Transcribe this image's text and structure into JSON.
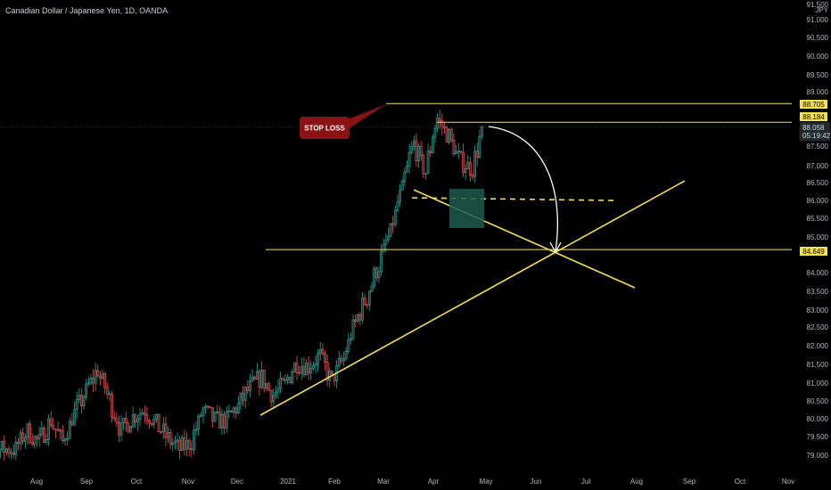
{
  "header": {
    "title": "Canadian Dollar / Japanese Yen, 1D, OANDA"
  },
  "chart_data": {
    "type": "candlestick",
    "currency": "JPY",
    "ylim": [
      78.5,
      91.6
    ],
    "y_ticks": [
      "91.500",
      "91.000",
      "90.500",
      "90.000",
      "89.500",
      "89.000",
      "87.500",
      "87.000",
      "86.500",
      "86.000",
      "85.500",
      "85.000",
      "84.000",
      "83.500",
      "83.000",
      "82.500",
      "82.000",
      "81.500",
      "81.000",
      "80.500",
      "80.000",
      "79.500",
      "79.000"
    ],
    "x_ticks": [
      "Aug",
      "Sep",
      "Oct",
      "Nov",
      "Dec",
      "2021",
      "Feb",
      "Mar",
      "Apr",
      "May",
      "Jun",
      "Jul",
      "Aug",
      "Sep",
      "Oct",
      "Nov"
    ],
    "price_levels": [
      {
        "label": "88.705",
        "value": 88.705
      },
      {
        "label": "88.184",
        "value": 88.184
      },
      {
        "label": "84.649",
        "value": 84.649
      }
    ],
    "current_price": {
      "value": 88.058,
      "label": "88.058",
      "countdown": "05:19:42"
    },
    "annotations": {
      "stop_loss": "STOP LOSS"
    },
    "close_path": [
      [
        "2020-07-20",
        79.1
      ],
      [
        "2020-07-27",
        79.6
      ],
      [
        "2020-08-03",
        79.3
      ],
      [
        "2020-08-10",
        79.9
      ],
      [
        "2020-08-17",
        79.3
      ],
      [
        "2020-08-24",
        80.1
      ],
      [
        "2020-08-31",
        80.7
      ],
      [
        "2020-09-07",
        81.3
      ],
      [
        "2020-09-14",
        80.5
      ],
      [
        "2020-09-21",
        79.6
      ],
      [
        "2020-09-28",
        80.0
      ],
      [
        "2020-10-05",
        80.2
      ],
      [
        "2020-10-12",
        79.8
      ],
      [
        "2020-10-19",
        79.4
      ],
      [
        "2020-10-26",
        79.1
      ],
      [
        "2020-11-02",
        79.3
      ],
      [
        "2020-11-09",
        80.2
      ],
      [
        "2020-11-16",
        79.9
      ],
      [
        "2020-11-23",
        79.9
      ],
      [
        "2020-11-30",
        80.3
      ],
      [
        "2020-12-07",
        80.8
      ],
      [
        "2020-12-14",
        81.1
      ],
      [
        "2020-12-21",
        80.6
      ],
      [
        "2020-12-28",
        80.9
      ],
      [
        "2021-01-04",
        81.5
      ],
      [
        "2021-01-11",
        81.4
      ],
      [
        "2021-01-18",
        81.7
      ],
      [
        "2021-01-25",
        81.0
      ],
      [
        "2021-02-01",
        81.6
      ],
      [
        "2021-02-08",
        82.6
      ],
      [
        "2021-02-15",
        83.3
      ],
      [
        "2021-02-22",
        84.2
      ],
      [
        "2021-03-01",
        85.1
      ],
      [
        "2021-03-08",
        86.3
      ],
      [
        "2021-03-15",
        87.6
      ],
      [
        "2021-03-22",
        86.8
      ],
      [
        "2021-03-29",
        88.3
      ],
      [
        "2021-04-05",
        87.8
      ],
      [
        "2021-04-12",
        87.1
      ],
      [
        "2021-04-19",
        86.9
      ],
      [
        "2021-04-26",
        88.06
      ]
    ]
  }
}
